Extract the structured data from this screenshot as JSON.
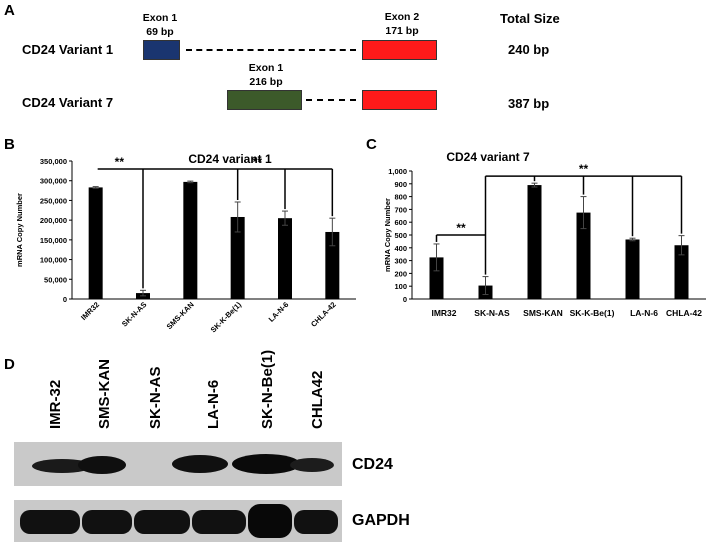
{
  "panel_a": {
    "label": "A",
    "total_header": "Total Size",
    "variants": [
      {
        "name": "CD24 Variant  1",
        "total": "240 bp",
        "exons": [
          {
            "name": "Exon 1",
            "size": "69 bp",
            "color": "#1a3570"
          },
          {
            "name": "Exon 2",
            "size": "171 bp",
            "color": "#ff1a1a"
          }
        ]
      },
      {
        "name": "CD24 Variant  7",
        "total": "387 bp",
        "exons": [
          {
            "name": "Exon 1",
            "size": "216 bp",
            "color": "#3c5a2a"
          },
          {
            "name": "",
            "size": "",
            "color": "#ff1a1a"
          }
        ]
      }
    ]
  },
  "panel_b": {
    "label": "B"
  },
  "panel_c": {
    "label": "C"
  },
  "panel_d": {
    "label": "D",
    "lanes": [
      "IMR-32",
      "SMS-KAN",
      "SK-N-AS",
      "LA-N-6",
      "SK-N-Be(1)",
      "CHLA42"
    ],
    "blots": [
      {
        "name": "CD24",
        "band_present": [
          1,
          1,
          0,
          1,
          1,
          0
        ]
      },
      {
        "name": "GAPDH",
        "band_present": [
          1,
          1,
          1,
          1,
          1,
          1
        ]
      }
    ]
  },
  "chart_data": [
    {
      "type": "bar",
      "title": "CD24 variant 1",
      "ylabel": "mRNA Copy Number",
      "xlabel": "",
      "categories": [
        "IMR32",
        "SK-N-AS",
        "SMS-KAN",
        "SK-K-Be(1)",
        "LA-N-6",
        "CHLA-42"
      ],
      "values": [
        283000,
        15000,
        297000,
        208000,
        205000,
        170000
      ],
      "errors": [
        2000,
        7000,
        2000,
        38000,
        18000,
        35000
      ],
      "ylim": [
        0,
        350000
      ],
      "yticks": [
        0,
        50000,
        100000,
        150000,
        200000,
        250000,
        300000,
        350000
      ],
      "ytick_labels": [
        "0",
        "50,000",
        "100,000",
        "150,000",
        "200,000",
        "250,000",
        "300,000",
        "350,000"
      ],
      "significance": [
        "**",
        "**"
      ],
      "bar_color": "#000000",
      "grid": false
    },
    {
      "type": "bar",
      "title": "CD24 variant 7",
      "ylabel": "mRNA Copy Number",
      "xlabel": "",
      "categories": [
        "IMR32",
        "SK-N-AS",
        "SMS-KAN",
        "SK-K-Be(1)",
        "LA-N-6",
        "CHLA-42"
      ],
      "values": [
        325,
        105,
        890,
        675,
        465,
        420
      ],
      "errors": [
        105,
        70,
        15,
        125,
        10,
        75
      ],
      "ylim": [
        0,
        1000
      ],
      "yticks": [
        0,
        100,
        200,
        300,
        400,
        500,
        600,
        700,
        800,
        900,
        1000
      ],
      "ytick_labels": [
        "0",
        "100",
        "200",
        "300",
        "400",
        "500",
        "600",
        "700",
        "800",
        "900",
        "1,000"
      ],
      "significance": [
        "**",
        "**"
      ],
      "bar_color": "#000000",
      "grid": false
    }
  ]
}
